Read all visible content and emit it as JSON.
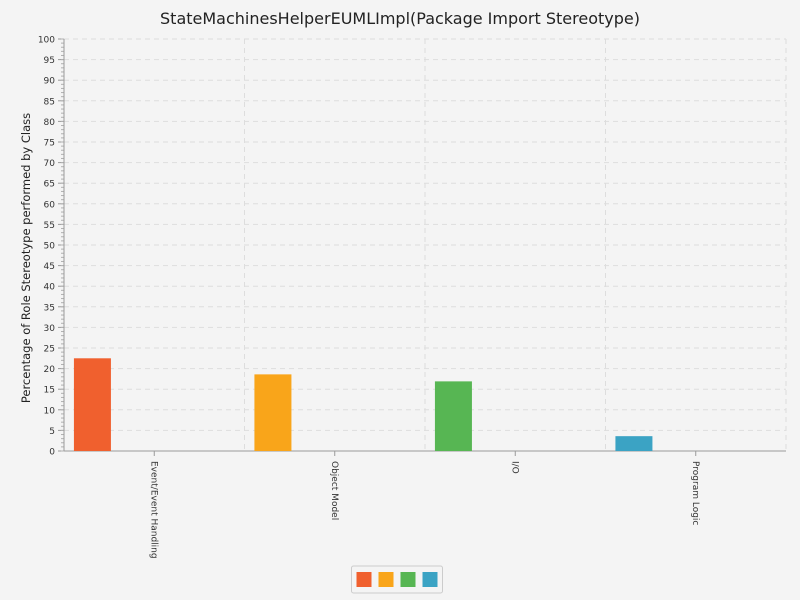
{
  "chart_data": {
    "type": "bar",
    "title": "StateMachinesHelperEUMLImpl(Package Import Stereotype)",
    "xlabel": "",
    "ylabel": "Percentage of Role Stereotype performed by Class",
    "ylim": [
      0,
      100
    ],
    "ytick_step": 5,
    "yticks": [
      "0",
      "5",
      "10",
      "15",
      "20",
      "25",
      "30",
      "35",
      "40",
      "45",
      "50",
      "55",
      "60",
      "65",
      "70",
      "75",
      "80",
      "85",
      "90",
      "95",
      "100"
    ],
    "categories": [
      "Event/Event Handling",
      "Object Model",
      "I/O",
      "Program Logic"
    ],
    "values": [
      22.5,
      18.6,
      16.9,
      3.6
    ],
    "colors": [
      "#f0602e",
      "#f9a51a",
      "#57b653",
      "#3ba3c4"
    ],
    "grid": true,
    "legend_position": "bottom"
  }
}
